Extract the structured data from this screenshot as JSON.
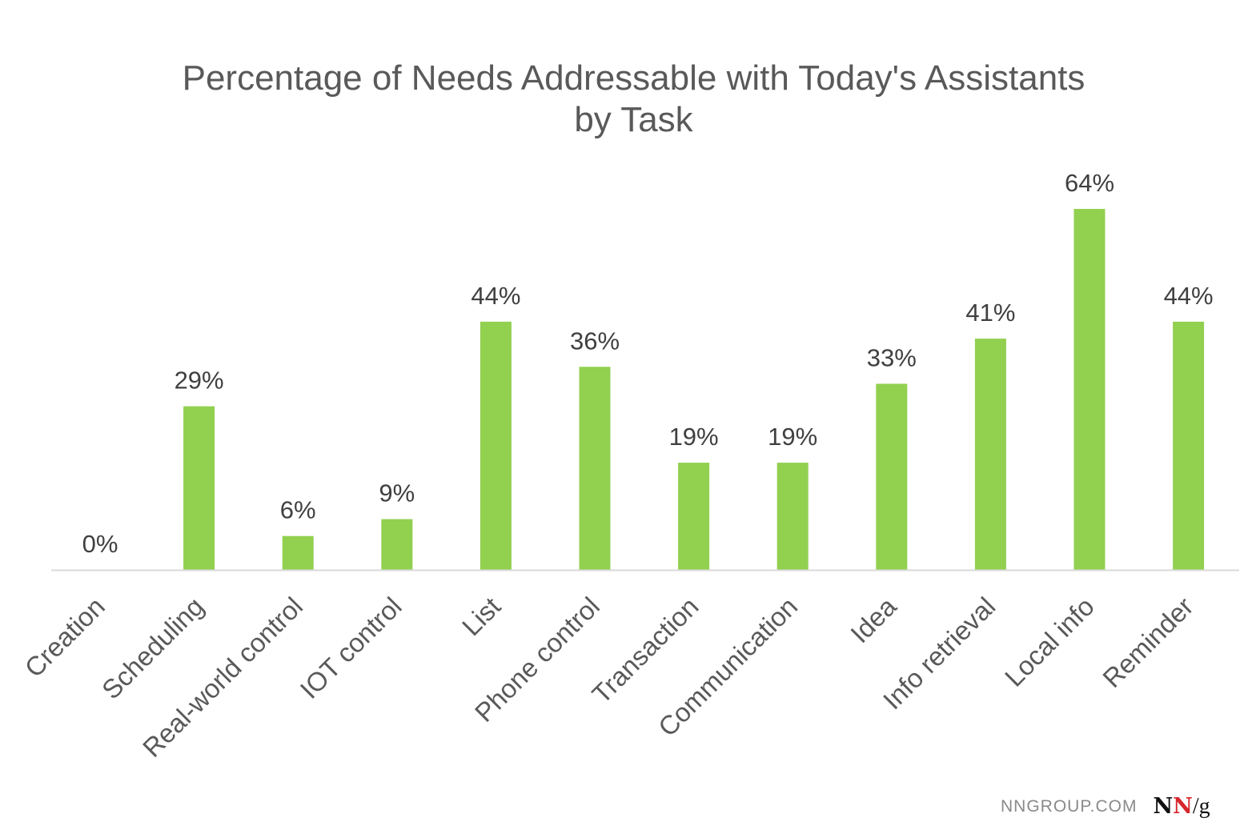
{
  "chart_data": {
    "type": "bar",
    "title": [
      "Percentage of Needs Addressable with Today's Assistants",
      "by Task"
    ],
    "categories": [
      "Creation",
      "Scheduling",
      "Real-world control",
      "IOT control",
      "List",
      "Phone control",
      "Transaction",
      "Communication",
      "Idea",
      "Info retrieval",
      "Local info",
      "Reminder"
    ],
    "values": [
      0,
      29,
      6,
      9,
      44,
      36,
      19,
      19,
      33,
      41,
      64,
      44
    ],
    "data_labels": [
      "0%",
      "29%",
      "6%",
      "9%",
      "44%",
      "36%",
      "19%",
      "19%",
      "33%",
      "41%",
      "64%",
      "44%"
    ],
    "ylim": [
      0,
      70
    ],
    "grid": false,
    "legend": "none",
    "colors": {
      "bar": "#92d050",
      "axis": "#d9d9d9",
      "text": "#595959",
      "label": "#404040"
    }
  },
  "watermark": {
    "site": "NNGROUP.COM",
    "logo_n1": "N",
    "logo_n2": "N",
    "logo_slash_g": "/g"
  }
}
